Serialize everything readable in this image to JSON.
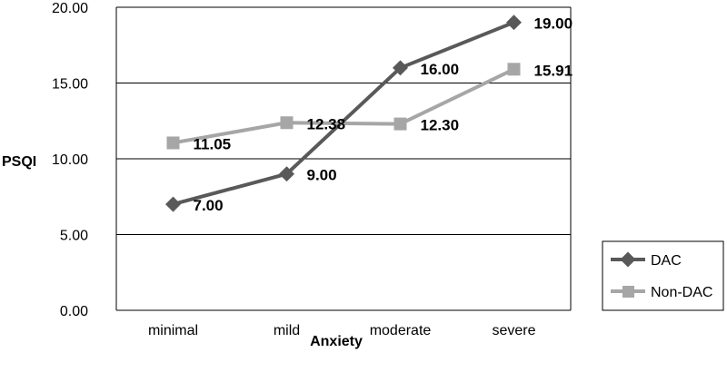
{
  "chart_data": {
    "type": "line",
    "title": "",
    "xlabel": "Anxiety",
    "ylabel": "PSQI",
    "categories": [
      "minimal",
      "mild",
      "moderate",
      "severe"
    ],
    "ylim": [
      0,
      20
    ],
    "yticks": [
      "0.00",
      "5.00",
      "10.00",
      "15.00",
      "20.00"
    ],
    "grid": true,
    "legend_position": "bottom-right",
    "series": [
      {
        "name": "DAC",
        "values": [
          7.0,
          9.0,
          16.0,
          19.0
        ],
        "labels": [
          "7.00",
          "9.00",
          "16.00",
          "19.00"
        ],
        "color": "#595959",
        "marker": "diamond"
      },
      {
        "name": "Non-DAC",
        "values": [
          11.05,
          12.38,
          12.3,
          15.91
        ],
        "labels": [
          "11.05",
          "12.38",
          "12.30",
          "15.91"
        ],
        "color": "#a6a6a6",
        "marker": "square"
      }
    ]
  }
}
